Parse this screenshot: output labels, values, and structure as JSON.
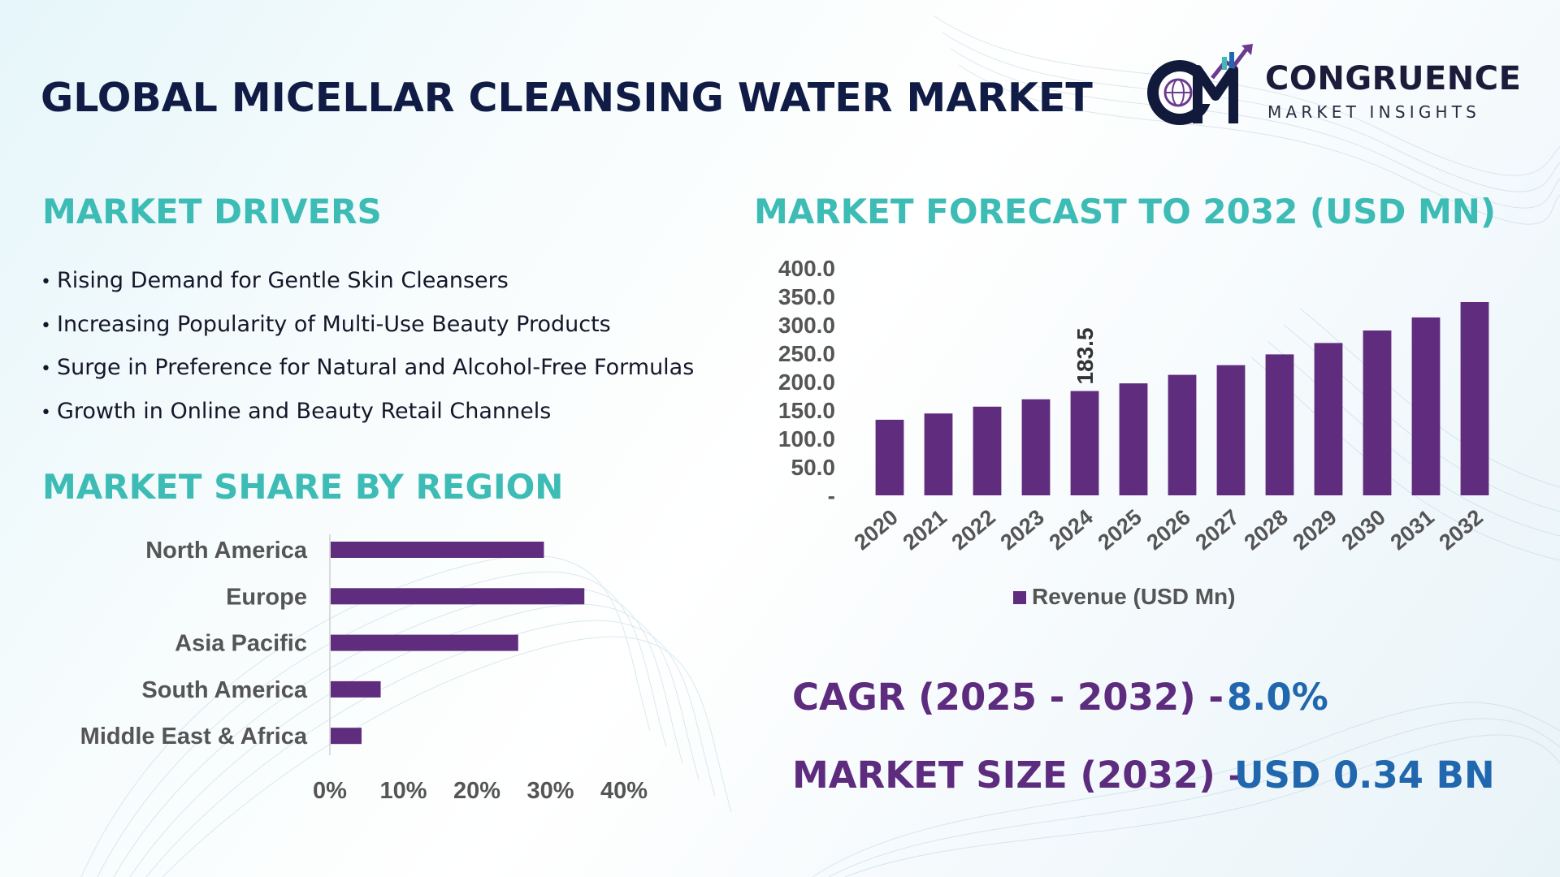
{
  "header": {
    "title": "GLOBAL MICELLAR CLEANSING WATER MARKET",
    "logo_name": "CONGRUENCE",
    "logo_tagline": "MARKET INSIGHTS"
  },
  "drivers": {
    "title": "MARKET DRIVERS",
    "items": [
      "Rising Demand for Gentle Skin Cleansers",
      "Increasing Popularity of Multi-Use Beauty Products",
      "Surge in Preference for Natural and Alcohol-Free Formulas",
      "Growth in Online and Beauty Retail Channels"
    ]
  },
  "region": {
    "title": "MARKET SHARE BY REGION"
  },
  "forecast": {
    "title": "MARKET FORECAST TO 2032 (USD MN)"
  },
  "kpis": {
    "cagr_label": "CAGR (2025 - 2032) -",
    "cagr_value": "8.0%",
    "size_label": "MARKET SIZE (2032) –",
    "size_value": "USD 0.34 BN"
  },
  "colors": {
    "bar": "#5f2c7e",
    "title_teal": "#3dbcb6",
    "heading_navy": "#101c45",
    "kpi_purple": "#5e2c7e",
    "kpi_blue": "#2167ad",
    "axis_text": "#555555"
  },
  "chart_data": [
    {
      "type": "bar",
      "orientation": "vertical",
      "categories": [
        "2020",
        "2021",
        "2022",
        "2023",
        "2024",
        "2025",
        "2026",
        "2027",
        "2028",
        "2029",
        "2030",
        "2031",
        "2032"
      ],
      "series": [
        {
          "name": "Revenue (USD Mn)",
          "values": [
            133,
            144,
            156,
            169,
            183.5,
            197,
            212,
            229,
            248,
            268,
            290,
            313,
            340
          ]
        }
      ],
      "data_labels": [
        {
          "category": "2024",
          "label": "183.5"
        }
      ],
      "ylim": [
        0,
        400
      ],
      "yticks": [
        "-",
        "50.0",
        "100.0",
        "150.0",
        "200.0",
        "250.0",
        "300.0",
        "350.0",
        "400.0"
      ],
      "ytick_values": [
        0,
        50,
        100,
        150,
        200,
        250,
        300,
        350,
        400
      ],
      "legend": "bottom",
      "grid": false
    },
    {
      "type": "bar",
      "orientation": "horizontal",
      "categories": [
        "North America",
        "Europe",
        "Asia Pacific",
        "South America",
        "Middle East & Africa"
      ],
      "values": [
        29,
        34.5,
        25.5,
        6.8,
        4.2
      ],
      "xlim": [
        0,
        40
      ],
      "xticks": [
        "0%",
        "10%",
        "20%",
        "30%",
        "40%"
      ],
      "xtick_values": [
        0,
        10,
        20,
        30,
        40
      ],
      "grid": false
    }
  ]
}
